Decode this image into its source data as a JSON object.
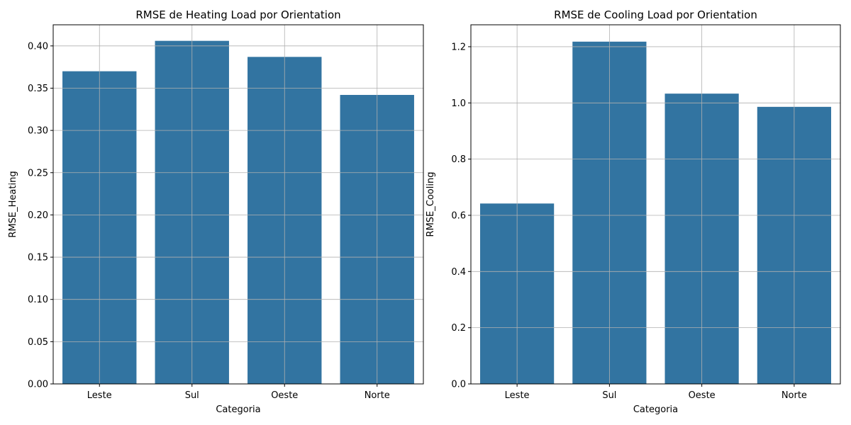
{
  "chart_data": [
    {
      "type": "bar",
      "title": "RMSE de Heating Load por Orientation",
      "xlabel": "Categoria",
      "ylabel": "RMSE_Heating",
      "categories": [
        "Leste",
        "Sul",
        "Oeste",
        "Norte"
      ],
      "values": [
        0.37,
        0.406,
        0.387,
        0.342
      ],
      "ylim": [
        0,
        0.425
      ],
      "yticks": [
        0.0,
        0.05,
        0.1,
        0.15,
        0.2,
        0.25,
        0.3,
        0.35,
        0.4
      ],
      "ytick_labels": [
        "0.00",
        "0.05",
        "0.10",
        "0.15",
        "0.20",
        "0.25",
        "0.30",
        "0.35",
        "0.40"
      ],
      "grid": true,
      "bar_color": "#3274a1"
    },
    {
      "type": "bar",
      "title": "RMSE de Cooling Load por Orientation",
      "xlabel": "Categoria",
      "ylabel": "RMSE_Cooling",
      "categories": [
        "Leste",
        "Sul",
        "Oeste",
        "Norte"
      ],
      "values": [
        0.642,
        1.218,
        1.033,
        0.986
      ],
      "ylim": [
        0,
        1.278
      ],
      "yticks": [
        0.0,
        0.2,
        0.4,
        0.6,
        0.8,
        1.0,
        1.2
      ],
      "ytick_labels": [
        "0.0",
        "0.2",
        "0.4",
        "0.6",
        "0.8",
        "1.0",
        "1.2"
      ],
      "grid": true,
      "bar_color": "#3274a1"
    }
  ]
}
